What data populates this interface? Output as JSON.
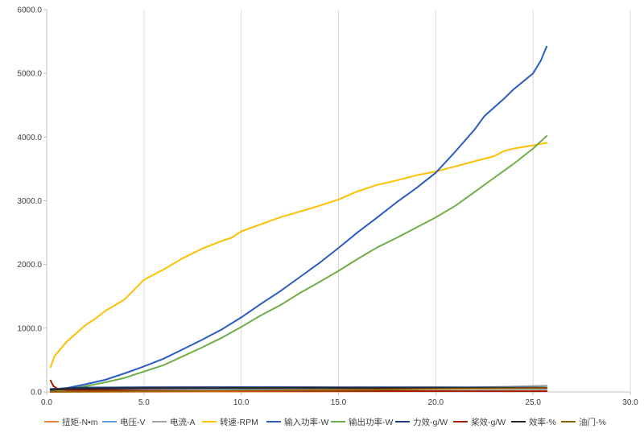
{
  "chart_data": {
    "type": "line",
    "title": "",
    "xlabel": "",
    "ylabel": "",
    "xlim": [
      0,
      30
    ],
    "ylim": [
      0,
      6000
    ],
    "grid": "vertical",
    "legend_position": "bottom",
    "x_ticks": [
      "0.0",
      "5.0",
      "10.0",
      "15.0",
      "20.0",
      "25.0",
      "30.0"
    ],
    "y_ticks": [
      "0.0",
      "1000.0",
      "2000.0",
      "3000.0",
      "4000.0",
      "5000.0",
      "6000.0"
    ],
    "series": [
      {
        "name": "扭矩-N•m",
        "color": "#ed7d31",
        "points": [
          [
            0.2,
            1
          ],
          [
            5,
            3
          ],
          [
            10,
            5
          ],
          [
            15,
            8
          ],
          [
            20,
            12
          ],
          [
            25.7,
            16
          ]
        ]
      },
      {
        "name": "电压-V",
        "color": "#5b9bd5",
        "points": [
          [
            0.2,
            50
          ],
          [
            5,
            50
          ],
          [
            10,
            50
          ],
          [
            15,
            49
          ],
          [
            20,
            48
          ],
          [
            25.7,
            48
          ]
        ]
      },
      {
        "name": "电流-A",
        "color": "#a5a5a5",
        "points": [
          [
            0.2,
            1
          ],
          [
            5,
            10
          ],
          [
            10,
            25
          ],
          [
            15,
            40
          ],
          [
            20,
            60
          ],
          [
            24,
            85
          ],
          [
            25.7,
            100
          ]
        ]
      },
      {
        "name": "转速-RPM",
        "color": "#ffc000",
        "points": [
          [
            0.2,
            390
          ],
          [
            0.4,
            560
          ],
          [
            1,
            780
          ],
          [
            2,
            1050
          ],
          [
            2.5,
            1150
          ],
          [
            3,
            1270
          ],
          [
            4,
            1450
          ],
          [
            5,
            1760
          ],
          [
            6,
            1920
          ],
          [
            7,
            2100
          ],
          [
            8,
            2250
          ],
          [
            9,
            2370
          ],
          [
            9.5,
            2420
          ],
          [
            10,
            2520
          ],
          [
            12,
            2740
          ],
          [
            14,
            2920
          ],
          [
            15,
            3020
          ],
          [
            16,
            3150
          ],
          [
            17,
            3250
          ],
          [
            18,
            3320
          ],
          [
            19,
            3400
          ],
          [
            20,
            3460
          ],
          [
            21,
            3540
          ],
          [
            22,
            3620
          ],
          [
            23,
            3700
          ],
          [
            23.5,
            3780
          ],
          [
            24,
            3820
          ],
          [
            25,
            3870
          ],
          [
            25.7,
            3910
          ]
        ]
      },
      {
        "name": "输入功率-W",
        "color": "#2a5cc3",
        "points": [
          [
            0.2,
            5
          ],
          [
            0.5,
            20
          ],
          [
            1,
            60
          ],
          [
            2,
            120
          ],
          [
            3,
            190
          ],
          [
            4,
            290
          ],
          [
            5,
            400
          ],
          [
            6,
            520
          ],
          [
            7,
            670
          ],
          [
            8,
            820
          ],
          [
            9,
            980
          ],
          [
            10,
            1170
          ],
          [
            11,
            1380
          ],
          [
            12,
            1580
          ],
          [
            13,
            1800
          ],
          [
            14,
            2020
          ],
          [
            15,
            2260
          ],
          [
            16,
            2510
          ],
          [
            17,
            2740
          ],
          [
            18,
            2980
          ],
          [
            19,
            3200
          ],
          [
            20,
            3440
          ],
          [
            21,
            3770
          ],
          [
            22,
            4120
          ],
          [
            22.5,
            4330
          ],
          [
            23.5,
            4600
          ],
          [
            24,
            4750
          ],
          [
            25,
            5000
          ],
          [
            25.4,
            5200
          ],
          [
            25.7,
            5420
          ]
        ]
      },
      {
        "name": "输出功率-W",
        "color": "#70ad47",
        "points": [
          [
            0.2,
            3
          ],
          [
            0.5,
            15
          ],
          [
            1,
            40
          ],
          [
            2,
            90
          ],
          [
            3,
            150
          ],
          [
            4,
            220
          ],
          [
            5,
            320
          ],
          [
            6,
            420
          ],
          [
            7,
            560
          ],
          [
            8,
            700
          ],
          [
            9,
            850
          ],
          [
            10,
            1020
          ],
          [
            11,
            1200
          ],
          [
            12,
            1360
          ],
          [
            13,
            1550
          ],
          [
            14,
            1720
          ],
          [
            15,
            1900
          ],
          [
            16,
            2090
          ],
          [
            17,
            2270
          ],
          [
            18,
            2420
          ],
          [
            19,
            2580
          ],
          [
            20,
            2740
          ],
          [
            21,
            2920
          ],
          [
            22,
            3140
          ],
          [
            23,
            3360
          ],
          [
            24,
            3580
          ],
          [
            25,
            3820
          ],
          [
            25.7,
            4020
          ]
        ]
      },
      {
        "name": "力效-g/W",
        "color": "#1f3d7a",
        "points": [
          [
            0.2,
            40
          ],
          [
            1,
            60
          ],
          [
            2,
            70
          ],
          [
            5,
            72
          ],
          [
            10,
            74
          ],
          [
            15,
            73
          ],
          [
            20,
            72
          ],
          [
            25,
            70
          ],
          [
            25.7,
            70
          ]
        ]
      },
      {
        "name": "桨效-g/W",
        "color": "#9e1c00",
        "points": [
          [
            0.2,
            180
          ],
          [
            0.35,
            90
          ],
          [
            0.6,
            40
          ],
          [
            1,
            30
          ],
          [
            5,
            22
          ],
          [
            10,
            18
          ],
          [
            15,
            15
          ],
          [
            20,
            13
          ],
          [
            25.7,
            12
          ]
        ]
      },
      {
        "name": "效率-%",
        "color": "#262626",
        "points": [
          [
            0.2,
            30
          ],
          [
            1,
            45
          ],
          [
            5,
            58
          ],
          [
            10,
            62
          ],
          [
            15,
            62
          ],
          [
            20,
            60
          ],
          [
            25.7,
            60
          ]
        ]
      },
      {
        "name": "油门-%",
        "color": "#996000",
        "points": [
          [
            0.2,
            1
          ],
          [
            5,
            10
          ],
          [
            10,
            20
          ],
          [
            15,
            30
          ],
          [
            20,
            45
          ],
          [
            25.7,
            60
          ]
        ]
      }
    ]
  }
}
